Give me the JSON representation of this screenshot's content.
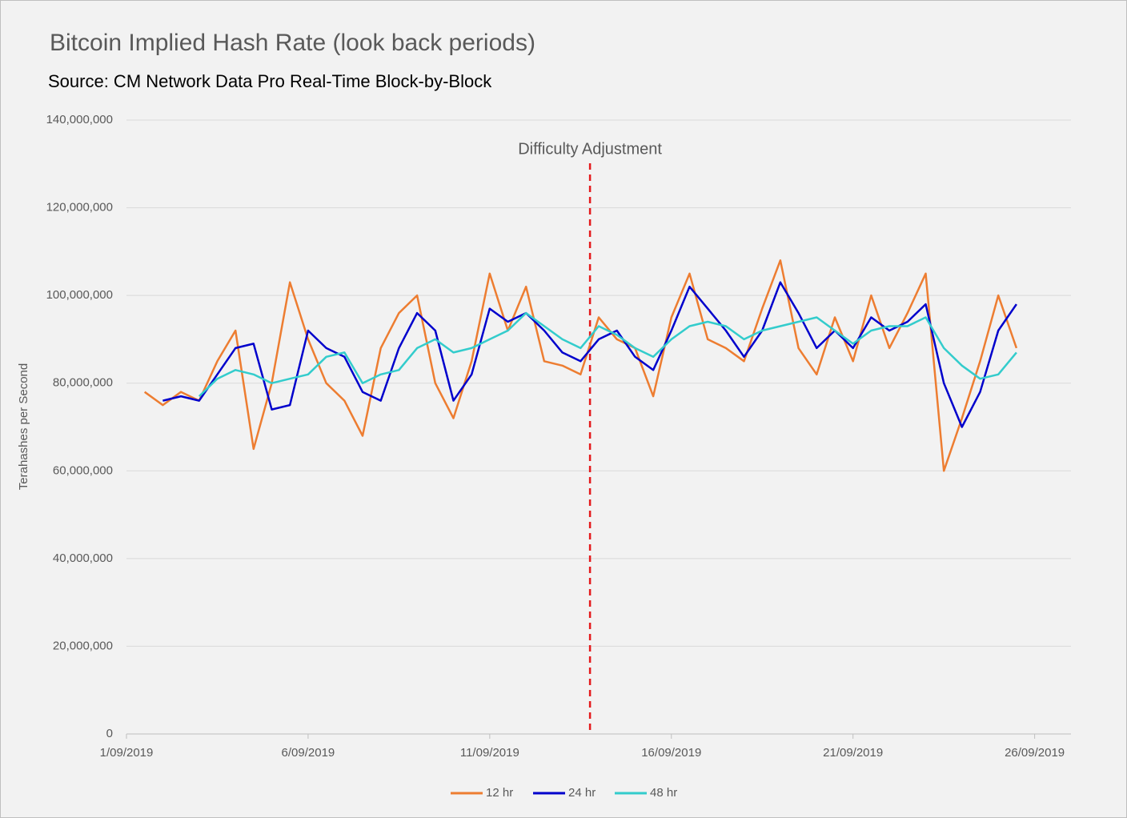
{
  "chart_data": {
    "type": "line",
    "title": "Bitcoin Implied Hash Rate (look back periods)",
    "subtitle": "Source: CM Network Data Pro Real-Time Block-by-Block",
    "y_label": "Terahashes per Second",
    "x": [
      0.5,
      1,
      1.5,
      2,
      2.5,
      3,
      3.5,
      4,
      4.5,
      5,
      5.5,
      6,
      6.5,
      7,
      7.5,
      8,
      8.5,
      9,
      9.5,
      10,
      10.5,
      11,
      11.5,
      12,
      12.5,
      13,
      13.5,
      14,
      14.5,
      15,
      15.5,
      16,
      16.5,
      17,
      17.5,
      18,
      18.5,
      19,
      19.5,
      20,
      20.5,
      21,
      21.5,
      22,
      22.5,
      23,
      23.5,
      24,
      24.5
    ],
    "xlim": [
      0,
      26
    ],
    "xticks": [
      {
        "value": 0,
        "label": "1/09/2019"
      },
      {
        "value": 5,
        "label": "6/09/2019"
      },
      {
        "value": 10,
        "label": "11/09/2019"
      },
      {
        "value": 15,
        "label": "16/09/2019"
      },
      {
        "value": 20,
        "label": "21/09/2019"
      },
      {
        "value": 25,
        "label": "26/09/2019"
      }
    ],
    "ylim": [
      0,
      140000000
    ],
    "yticks": [
      0,
      {
        "value": 20000000,
        "label": "20,000,000"
      },
      {
        "value": 40000000,
        "label": "40,000,000"
      },
      {
        "value": 60000000,
        "label": "60,000,000"
      },
      {
        "value": 80000000,
        "label": "80,000,000"
      },
      {
        "value": 100000000,
        "label": "100,000,000"
      },
      {
        "value": 120000000,
        "label": "120,000,000"
      },
      {
        "value": 140000000,
        "label": "140,000,000"
      }
    ],
    "grid": true,
    "legend": "bottom",
    "annotations": [
      {
        "text": "Difficulty Adjustment",
        "x": 12.76,
        "color": "#e41a1c"
      }
    ],
    "series": [
      {
        "name": "12 hr",
        "color": "#ed7d31",
        "values": [
          78000000,
          75000000,
          78000000,
          76000000,
          85000000,
          92000000,
          65000000,
          80000000,
          103000000,
          90000000,
          80000000,
          76000000,
          68000000,
          88000000,
          96000000,
          100000000,
          80000000,
          72000000,
          85000000,
          105000000,
          92000000,
          102000000,
          85000000,
          84000000,
          82000000,
          95000000,
          90000000,
          88000000,
          77000000,
          95000000,
          105000000,
          90000000,
          88000000,
          85000000,
          97000000,
          108000000,
          88000000,
          82000000,
          95000000,
          85000000,
          100000000,
          88000000,
          96000000,
          105000000,
          60000000,
          72000000,
          85000000,
          100000000,
          88000000
        ]
      },
      {
        "name": "24 hr",
        "color": "#0000cc",
        "values": [
          null,
          76000000,
          77000000,
          76000000,
          82000000,
          88000000,
          89000000,
          74000000,
          75000000,
          92000000,
          88000000,
          86000000,
          78000000,
          76000000,
          88000000,
          96000000,
          92000000,
          76000000,
          82000000,
          97000000,
          94000000,
          96000000,
          92000000,
          87000000,
          85000000,
          90000000,
          92000000,
          86000000,
          83000000,
          92000000,
          102000000,
          97000000,
          92000000,
          86000000,
          92000000,
          103000000,
          96000000,
          88000000,
          92000000,
          88000000,
          95000000,
          92000000,
          94000000,
          98000000,
          80000000,
          70000000,
          78000000,
          92000000,
          98000000
        ]
      },
      {
        "name": "48 hr",
        "color": "#33cccc",
        "values": [
          null,
          null,
          null,
          77000000,
          81000000,
          83000000,
          82000000,
          80000000,
          81000000,
          82000000,
          86000000,
          87000000,
          80000000,
          82000000,
          83000000,
          88000000,
          90000000,
          87000000,
          88000000,
          90000000,
          92000000,
          96000000,
          93000000,
          90000000,
          88000000,
          93000000,
          91000000,
          88000000,
          86000000,
          90000000,
          93000000,
          94000000,
          93000000,
          90000000,
          92000000,
          93000000,
          94000000,
          95000000,
          92000000,
          89000000,
          92000000,
          93000000,
          93000000,
          95000000,
          88000000,
          84000000,
          81000000,
          82000000,
          87000000
        ]
      }
    ]
  }
}
